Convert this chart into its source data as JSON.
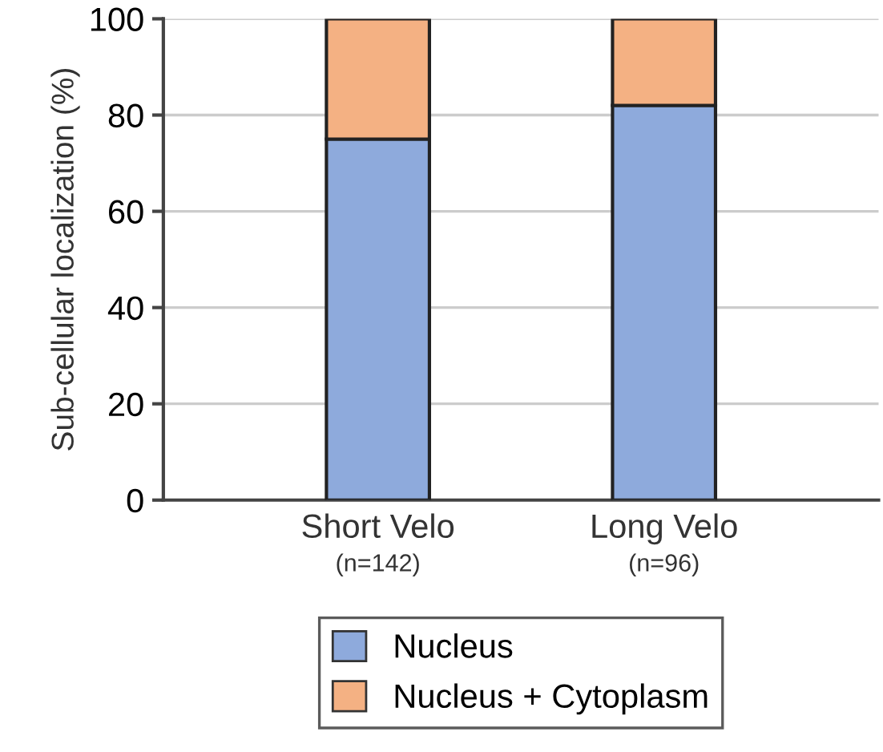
{
  "chart_data": {
    "type": "bar",
    "stacked": true,
    "ylabel": "Sub-cellular localization (%)",
    "categories": [
      "Short Velo\n(n=142)",
      "Long Velo\n(n=96)"
    ],
    "series": [
      {
        "name": "Nucleus",
        "color": "#8eaadc",
        "values": [
          75,
          82
        ]
      },
      {
        "name": "Nucleus + Cytoplasm",
        "color": "#f4b183",
        "values": [
          25,
          18
        ]
      }
    ],
    "ylim": [
      0,
      100
    ],
    "yticks": [
      0,
      20,
      40,
      60,
      80,
      100
    ],
    "grid": "y",
    "legend": "bottom"
  }
}
